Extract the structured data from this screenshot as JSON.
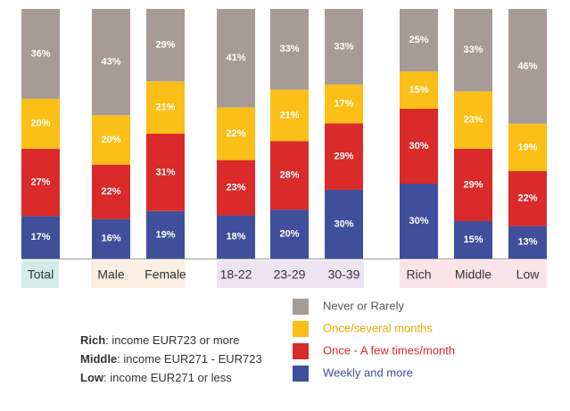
{
  "chart_data": {
    "type": "stacked_bar_100",
    "categories": [
      "Total",
      "Male",
      "Female",
      "18-22",
      "23-29",
      "30-39",
      "Rich",
      "Middle",
      "Low"
    ],
    "series": [
      {
        "name": "Weekly and more",
        "color": "#3f4f9b",
        "label_color": "#3f4f9b",
        "values": [
          17,
          16,
          19,
          18,
          20,
          30,
          30,
          15,
          13
        ],
        "value_labels": [
          "17%",
          "16%",
          "19%",
          "18%",
          "20%",
          "30%",
          "30%",
          "15%",
          "13%"
        ]
      },
      {
        "name": "Once - A few times/month",
        "color": "#da2a2a",
        "label_color": "#da2a2a",
        "values": [
          27,
          22,
          31,
          23,
          28,
          29,
          30,
          29,
          22
        ],
        "value_labels": [
          "27%",
          "22%",
          "31%",
          "23%",
          "28%",
          "29%",
          "30%",
          "29%",
          "22%"
        ]
      },
      {
        "name": "Once/several months",
        "color": "#fbbf17",
        "label_color": "#e8a900",
        "values": [
          20,
          20,
          21,
          22,
          21,
          17,
          15,
          23,
          19
        ],
        "value_labels": [
          "20%",
          "20%",
          "21%",
          "22%",
          "21%",
          "17%",
          "15%",
          "23%",
          "19%"
        ]
      },
      {
        "name": "Never or Rarely",
        "color": "#a69b97",
        "label_color": "#555555",
        "values": [
          36,
          43,
          29,
          41,
          33,
          33,
          25,
          33,
          46
        ],
        "value_labels": [
          "36%",
          "43%",
          "29%",
          "41%",
          "33%",
          "33%",
          "25%",
          "33%",
          "46%"
        ]
      }
    ],
    "notes": [
      {
        "term": "Rich",
        "text": ": income EUR723 or more"
      },
      {
        "term": "Middle",
        "text": ": income EUR271 - EUR723"
      },
      {
        "term": "Low",
        "text": ": income EUR271 or less"
      }
    ]
  }
}
